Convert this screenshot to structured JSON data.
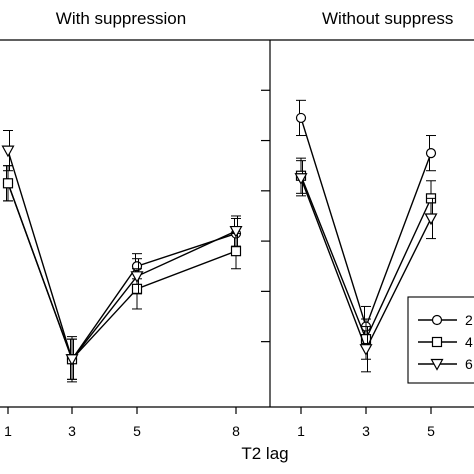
{
  "chart_data": [
    {
      "type": "line",
      "title": "With suppression",
      "xlabel": "",
      "ylabel": "",
      "categories": [
        "1",
        "3",
        "5",
        "8"
      ],
      "x": [
        1,
        3,
        5,
        8
      ],
      "series": [
        {
          "marker": "circle",
          "values": [
            0.715,
            0.365,
            0.55,
            0.615
          ],
          "errors": [
            0.035,
            0.04,
            0.025,
            0.03
          ]
        },
        {
          "marker": "square",
          "values": [
            0.715,
            0.365,
            0.505,
            0.58
          ],
          "errors": [
            0.035,
            0.045,
            0.04,
            0.035
          ]
        },
        {
          "marker": "triangle",
          "values": [
            0.78,
            0.365,
            0.53,
            0.62
          ],
          "errors": [
            0.04,
            0.04,
            0.035,
            0.03
          ]
        }
      ],
      "grid": false
    },
    {
      "type": "line",
      "title": "Without suppress",
      "xlabel": "T2 lag",
      "ylabel": "",
      "categories": [
        "1",
        "3",
        "5"
      ],
      "x": [
        1,
        3,
        5
      ],
      "series": [
        {
          "name": "2",
          "marker": "circle",
          "values": [
            0.845,
            0.43,
            0.775
          ],
          "errors": [
            0.035,
            0.04,
            0.035
          ]
        },
        {
          "name": "4",
          "marker": "square",
          "values": [
            0.73,
            0.405,
            0.685
          ],
          "errors": [
            0.035,
            0.04,
            0.035
          ]
        },
        {
          "name": "6",
          "marker": "triangle",
          "values": [
            0.725,
            0.385,
            0.645
          ],
          "errors": [
            0.035,
            0.045,
            0.04
          ]
        }
      ],
      "grid": false,
      "legend": "bottom-right"
    }
  ]
}
